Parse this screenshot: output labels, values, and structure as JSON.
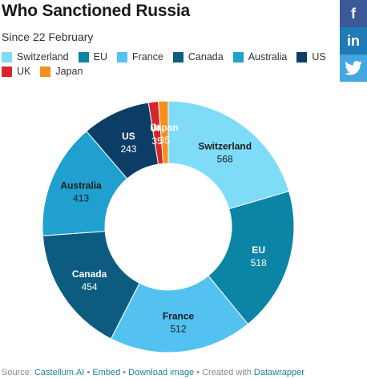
{
  "header": {
    "title": "Who Sanctioned Russia",
    "subtitle": "Since 22 February"
  },
  "share": {
    "facebook": "f",
    "linkedin": "in",
    "twitter_icon": "twitter-bird",
    "facebook_color": "#3b5998",
    "linkedin_color": "#1f7ab5",
    "twitter_color": "#45a7e0"
  },
  "chart_data": {
    "type": "pie",
    "donut": true,
    "title": "Who Sanctioned Russia",
    "subtitle": "Since 22 February",
    "legend_placement": "top",
    "categories": [
      "Switzerland",
      "EU",
      "France",
      "Canada",
      "Australia",
      "US",
      "UK",
      "Japan"
    ],
    "values": [
      568,
      518,
      512,
      454,
      413,
      243,
      35,
      35
    ],
    "colors": [
      "#7fdcf8",
      "#0b84a5",
      "#54c2f0",
      "#0d5c80",
      "#1fa0cf",
      "#0b3d66",
      "#d7262b",
      "#f78f1e"
    ],
    "label_dark": [
      true,
      false,
      true,
      false,
      true,
      false,
      false,
      false
    ]
  },
  "footer": {
    "source_prefix": "Source:",
    "source_link": "Castellum.AI",
    "sep1": "•",
    "embed": "Embed",
    "sep2": "•",
    "download": "Download image",
    "sep3": "•",
    "created_with": "Created with",
    "datawrapper": "Datawrapper"
  }
}
